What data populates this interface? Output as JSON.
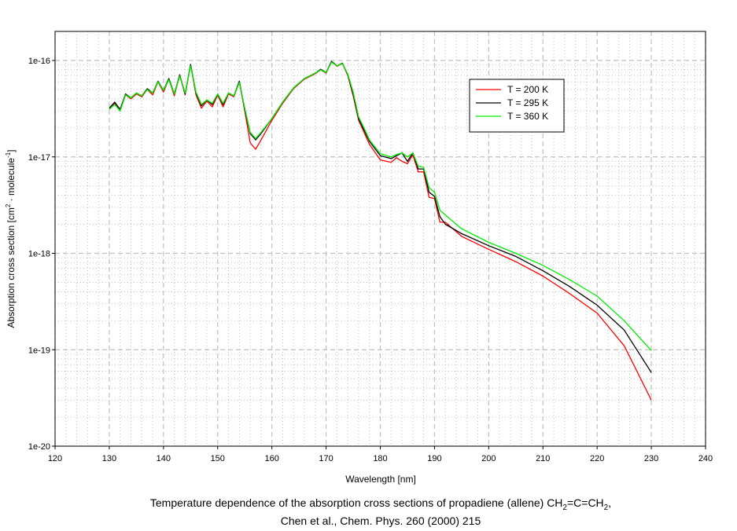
{
  "chart_data": {
    "type": "line",
    "xlabel": "Wavelength [nm]",
    "ylabel": "Absorption cross section [cm² · molecule⁻¹]",
    "ylabel_parts": {
      "a": "Absorption cross section [cm",
      "sup1": "2",
      "b": " · molecule",
      "sup2": "-1",
      "c": "]"
    },
    "xlim": [
      120,
      240
    ],
    "ylim": [
      1e-20,
      2e-16
    ],
    "yscale": "log",
    "grid": true,
    "legend_position": "top-right",
    "x_ticks": [
      "120",
      "130",
      "140",
      "150",
      "160",
      "170",
      "180",
      "190",
      "200",
      "210",
      "220",
      "230",
      "240"
    ],
    "y_ticks": [
      "1e-16",
      "1e-17",
      "1e-18",
      "1e-19",
      "1e-20"
    ],
    "x": [
      130,
      131,
      132,
      133,
      134,
      135,
      136,
      137,
      138,
      139,
      140,
      141,
      142,
      143,
      144,
      145,
      146,
      147,
      148,
      149,
      150,
      151,
      152,
      153,
      154,
      155,
      156,
      157,
      158,
      160,
      162,
      164,
      166,
      168,
      169,
      170,
      171,
      172,
      173,
      174,
      175,
      176,
      177,
      178,
      180,
      182,
      183,
      184,
      185,
      186,
      187,
      188,
      189,
      190,
      191,
      192,
      195,
      200,
      205,
      210,
      215,
      220,
      225,
      230
    ],
    "series": [
      {
        "name": "T = 200 K",
        "color": "#ff0000",
        "values": [
          3.2e-17,
          3.6e-17,
          3e-17,
          4.4e-17,
          4e-17,
          4.5e-17,
          4.2e-17,
          5e-17,
          4.4e-17,
          6e-17,
          4.7e-17,
          6.4e-17,
          4.3e-17,
          7e-17,
          4.4e-17,
          9e-17,
          4.4e-17,
          3.2e-17,
          3.8e-17,
          3.3e-17,
          4.4e-17,
          3.3e-17,
          4.5e-17,
          4.2e-17,
          6e-17,
          3e-17,
          1.4e-17,
          1.2e-17,
          1.5e-17,
          2.4e-17,
          3.6e-17,
          5.1e-17,
          6.4e-17,
          7.3e-17,
          8e-17,
          7.4e-17,
          9.7e-17,
          8.7e-17,
          9.3e-17,
          7e-17,
          4.3e-17,
          2.4e-17,
          1.8e-17,
          1.35e-17,
          9.3e-18,
          8.8e-18,
          9.8e-18,
          9e-18,
          8.5e-18,
          1.05e-17,
          7e-18,
          7e-18,
          3.8e-18,
          3.7e-18,
          2.1e-18,
          2.1e-18,
          1.5e-18,
          1.1e-18,
          8.2e-19,
          5.8e-19,
          3.8e-19,
          2.4e-19,
          1.1e-19,
          3e-20
        ]
      },
      {
        "name": "T = 295 K",
        "color": "#000000",
        "values": [
          3.2e-17,
          3.7e-17,
          3.1e-17,
          4.5e-17,
          4.1e-17,
          4.6e-17,
          4.3e-17,
          5.1e-17,
          4.6e-17,
          6.1e-17,
          4.9e-17,
          6.5e-17,
          4.5e-17,
          7.1e-17,
          4.5e-17,
          9.1e-17,
          4.6e-17,
          3.4e-17,
          3.9e-17,
          3.5e-17,
          4.5e-17,
          3.5e-17,
          4.6e-17,
          4.3e-17,
          6.1e-17,
          3.1e-17,
          1.75e-17,
          1.5e-17,
          1.75e-17,
          2.5e-17,
          3.7e-17,
          5.2e-17,
          6.5e-17,
          7.4e-17,
          8.1e-17,
          7.5e-17,
          9.8e-17,
          8.8e-17,
          9.4e-17,
          7.1e-17,
          4.5e-17,
          2.5e-17,
          1.9e-17,
          1.45e-17,
          1.03e-17,
          9.6e-18,
          1.03e-17,
          1.1e-17,
          9e-18,
          1.1e-17,
          7.5e-18,
          7.5e-18,
          4.3e-18,
          3.9e-18,
          2.4e-18,
          2e-18,
          1.6e-18,
          1.2e-18,
          9.3e-19,
          6.6e-19,
          4.5e-19,
          2.9e-19,
          1.6e-19,
          5.8e-20
        ]
      },
      {
        "name": "T = 360 K",
        "color": "#00ee00",
        "values": [
          3.1e-17,
          3.5e-17,
          3e-17,
          4.4e-17,
          4.1e-17,
          4.6e-17,
          4.3e-17,
          5e-17,
          4.6e-17,
          6e-17,
          4.9e-17,
          6.3e-17,
          4.5e-17,
          6.9e-17,
          4.6e-17,
          8.8e-17,
          4.7e-17,
          3.5e-17,
          3.9e-17,
          3.6e-17,
          4.5e-17,
          3.6e-17,
          4.6e-17,
          4.3e-17,
          5.9e-17,
          3.2e-17,
          1.8e-17,
          1.55e-17,
          1.8e-17,
          2.5e-17,
          3.7e-17,
          5.2e-17,
          6.5e-17,
          7.4e-17,
          8e-17,
          7.5e-17,
          9.6e-17,
          8.8e-17,
          9.3e-17,
          7.2e-17,
          4.7e-17,
          2.6e-17,
          2e-17,
          1.5e-17,
          1.08e-17,
          1e-17,
          1.06e-17,
          1.1e-17,
          1e-17,
          1.1e-17,
          8e-18,
          7.8e-18,
          4.8e-18,
          4.3e-18,
          2.8e-18,
          2.5e-18,
          1.8e-18,
          1.3e-18,
          1e-18,
          7.5e-19,
          5.3e-19,
          3.6e-19,
          2e-19,
          9.8e-20
        ]
      }
    ]
  },
  "caption": {
    "line1_a": "Temperature dependence of the absorption cross sections of propadiene (allene) CH",
    "sub1": "2",
    "line1_b": "=C=CH",
    "sub2": "2",
    "line1_c": ",",
    "line2": "Chen et al., Chem. Phys. 260 (2000) 215"
  }
}
